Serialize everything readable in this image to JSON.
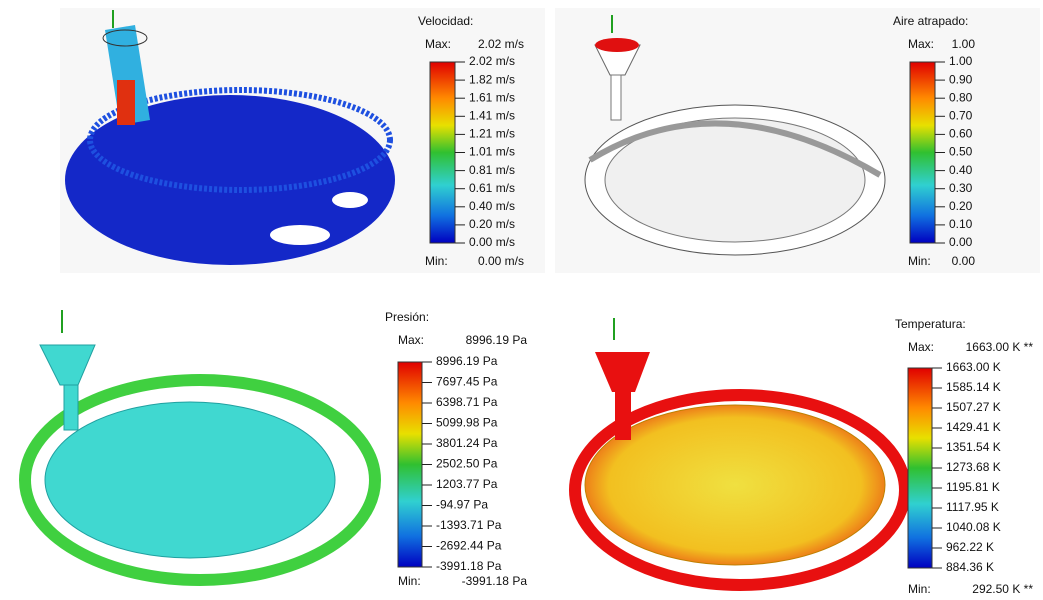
{
  "panels": [
    {
      "title": "Velocidad:",
      "max_label": "Max:",
      "max": "2.02 m/s",
      "ticks": [
        "2.02 m/s",
        "1.82 m/s",
        "1.61 m/s",
        "1.41 m/s",
        "1.21 m/s",
        "1.01 m/s",
        "0.81 m/s",
        "0.61 m/s",
        "0.40 m/s",
        "0.20 m/s",
        "0.00 m/s"
      ],
      "min_label": "Min:",
      "min": "0.00 m/s"
    },
    {
      "title": "Aire atrapado:",
      "max_label": "Max:",
      "max": "1.00",
      "ticks": [
        "1.00",
        "0.90",
        "0.80",
        "0.70",
        "0.60",
        "0.50",
        "0.40",
        "0.30",
        "0.20",
        "0.10",
        "0.00"
      ],
      "min_label": "Min:",
      "min": "0.00"
    },
    {
      "title": "Presión:",
      "max_label": "Max:",
      "max": "8996.19 Pa",
      "ticks": [
        "8996.19 Pa",
        "7697.45 Pa",
        "6398.71 Pa",
        "5099.98 Pa",
        "3801.24 Pa",
        "2502.50 Pa",
        "1203.77 Pa",
        "-94.97 Pa",
        "-1393.71 Pa",
        "-2692.44 Pa",
        "-3991.18 Pa"
      ],
      "min_label": "Min:",
      "min": "-3991.18 Pa"
    },
    {
      "title": "Temperatura:",
      "max_label": "Max:",
      "max": "1663.00 K **",
      "ticks": [
        "1663.00 K",
        "1585.14 K",
        "1507.27 K",
        "1429.41 K",
        "1351.54 K",
        "1273.68 K",
        "1195.81 K",
        "1117.95 K",
        "1040.08 K",
        "962.22 K",
        "884.36 K"
      ],
      "min_label": "Min:",
      "min": "292.50 K **"
    }
  ]
}
